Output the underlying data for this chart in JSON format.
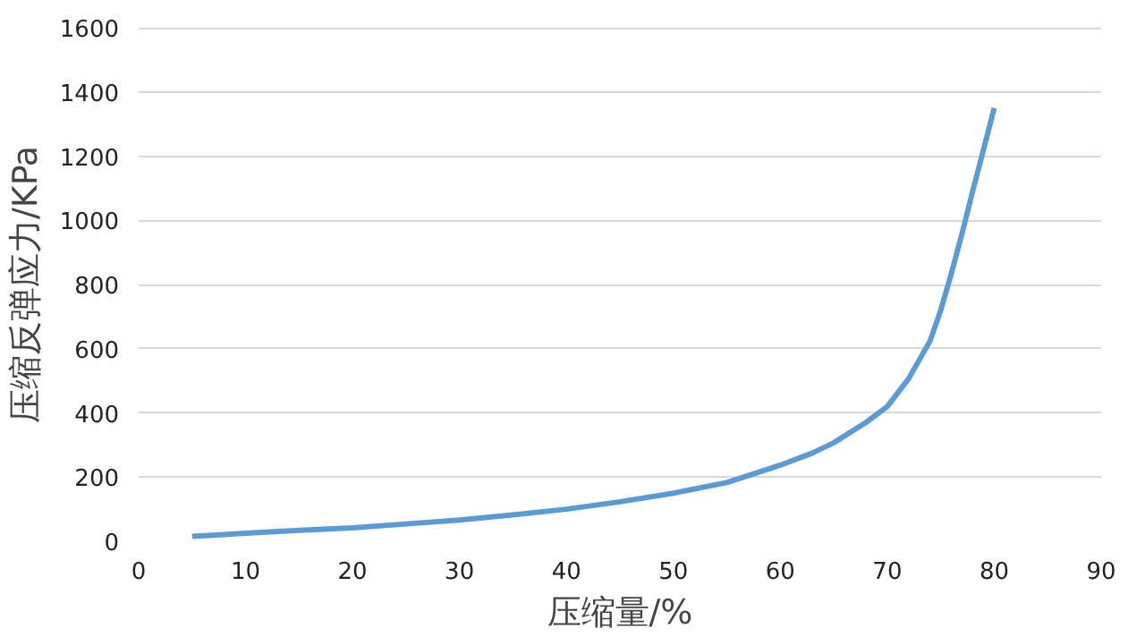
{
  "chart_data": {
    "type": "line",
    "xlabel": "压缩量/%",
    "ylabel": "压缩反弹应力/KPa",
    "x": [
      5,
      10,
      15,
      20,
      25,
      30,
      35,
      40,
      45,
      50,
      55,
      60,
      63,
      65,
      68,
      70,
      72,
      74,
      75,
      76,
      77,
      78,
      79,
      80
    ],
    "series": [
      {
        "color": "#5b9bd5",
        "values": [
          15,
          25,
          34,
          42,
          54,
          66,
          82,
          100,
          123,
          150,
          183,
          237,
          275,
          307,
          370,
          420,
          507,
          624,
          720,
          835,
          960,
          1093,
          1220,
          1350
        ]
      }
    ],
    "xlim": [
      0,
      90
    ],
    "xticks": [
      0,
      10,
      20,
      30,
      40,
      50,
      60,
      70,
      80,
      90
    ],
    "ylim": [
      0,
      1600
    ],
    "yticks": [
      0,
      200,
      400,
      600,
      800,
      1000,
      1200,
      1400,
      1600
    ],
    "grid": "y",
    "marker": "none",
    "line_style": "solid"
  }
}
